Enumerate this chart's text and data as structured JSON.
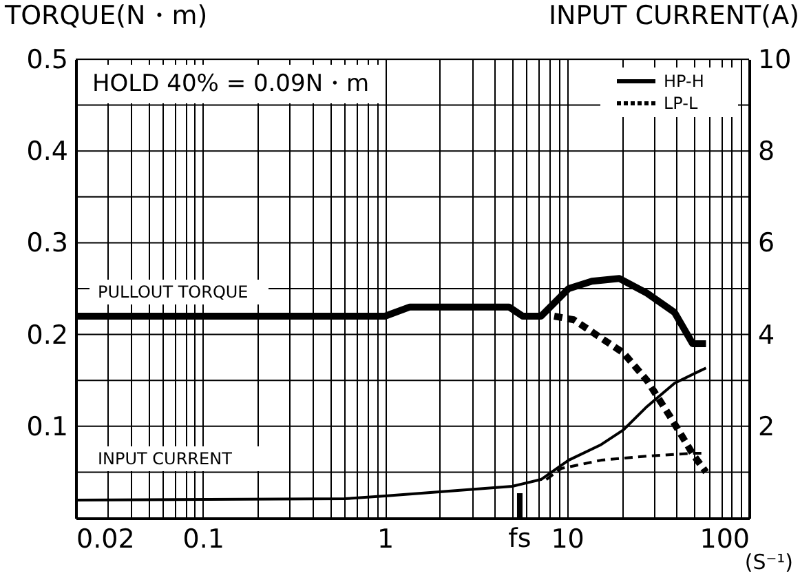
{
  "chart_data": {
    "type": "line",
    "ylabel": "TORQUE(N・m)",
    "y2label": "INPUT CURRENT(A)",
    "xlabel": "(S⁻¹)",
    "annotations": [
      "HOLD 40% = 0.09N・m",
      "PULLOUT TORQUE",
      "INPUT CURRENT"
    ],
    "log": "x",
    "grid": true,
    "legend": "top right",
    "xlim": [
      0.02,
      100
    ],
    "xticks": [
      0.02,
      {
        "value": 0.03,
        "label": null
      },
      {
        "value": 0.04,
        "label": null
      },
      {
        "value": 0.05,
        "label": null
      },
      {
        "value": 0.06,
        "label": null
      },
      {
        "value": 0.07,
        "label": null
      },
      {
        "value": 0.08,
        "label": null
      },
      {
        "value": 0.09,
        "label": null
      },
      0.1,
      {
        "value": 0.2,
        "label": null
      },
      {
        "value": 0.3,
        "label": null
      },
      {
        "value": 0.4,
        "label": null
      },
      {
        "value": 0.5,
        "label": null
      },
      {
        "value": 0.6,
        "label": null
      },
      {
        "value": 0.7,
        "label": null
      },
      {
        "value": 0.8,
        "label": null
      },
      {
        "value": 0.9,
        "label": null
      },
      1,
      {
        "value": 2,
        "label": null
      },
      {
        "value": 3,
        "label": null
      },
      {
        "value": 4,
        "label": null
      },
      {
        "value": 5,
        "label": null
      },
      {
        "value": 6,
        "label": null
      },
      {
        "value": 7,
        "label": null
      },
      {
        "value": 8,
        "label": null
      },
      {
        "value": 9,
        "label": null
      },
      10,
      {
        "value": 20,
        "label": null
      },
      {
        "value": 30,
        "label": null
      },
      {
        "value": 40,
        "label": null
      },
      {
        "value": 50,
        "label": null
      },
      {
        "value": 60,
        "label": null
      },
      {
        "value": 70,
        "label": null
      },
      {
        "value": 80,
        "label": null
      },
      {
        "value": 90,
        "label": null
      },
      100
    ],
    "ylim": [
      0,
      0.5
    ],
    "yticks": [
      {
        "value": 0,
        "label": null
      },
      {
        "value": 0.05,
        "label": null
      },
      0.1,
      {
        "value": 0.15,
        "label": null
      },
      0.2,
      {
        "value": 0.25,
        "label": null
      },
      0.3,
      {
        "value": 0.35,
        "label": null
      },
      0.4,
      {
        "value": 0.45,
        "label": null
      },
      0.5
    ],
    "y2lim": [
      0,
      10
    ],
    "y2ticks": [
      2,
      4,
      6,
      8,
      10
    ],
    "ref_lines": [
      {
        "axis": "x",
        "value": 5.5,
        "label": "fs"
      }
    ],
    "series": [
      {
        "name": "HP-H",
        "color": "#000000",
        "line_style": "solid",
        "x": [
          0.02,
          1,
          1.37,
          4.8,
          5.7,
          7.2,
          10.2,
          13.7,
          19.4,
          27.5,
          39,
          49,
          58
        ],
        "values": [
          0.22,
          0.22,
          0.23,
          0.23,
          0.22,
          0.22,
          0.25,
          0.258,
          0.261,
          0.245,
          0.224,
          0.19,
          0.19
        ]
      },
      {
        "name": "LP-L",
        "color": "#000000",
        "line_style": "dashed",
        "x": [
          8.5,
          10.9,
          14.4,
          20.4,
          27.5,
          37,
          49,
          58
        ],
        "values": [
          0.22,
          0.216,
          0.2,
          0.18,
          0.15,
          0.11,
          0.07,
          0.05
        ]
      },
      {
        "color": "#000000",
        "line_style": "solid",
        "axis": "y2",
        "x": [
          0.02,
          0.6,
          1,
          5,
          7.2,
          10.2,
          15.4,
          20.4,
          27.5,
          39,
          58
        ],
        "values": [
          0.39,
          0.42,
          0.48,
          0.69,
          0.84,
          1.26,
          1.6,
          1.92,
          2.43,
          2.94,
          3.27
        ]
      },
      {
        "color": "#000000",
        "line_style": "dashed",
        "axis": "y2",
        "x": [
          7.7,
          9.3,
          15.4,
          27.5,
          49,
          58
        ],
        "values": [
          0.84,
          1.08,
          1.26,
          1.35,
          1.41,
          1.41
        ]
      }
    ]
  }
}
